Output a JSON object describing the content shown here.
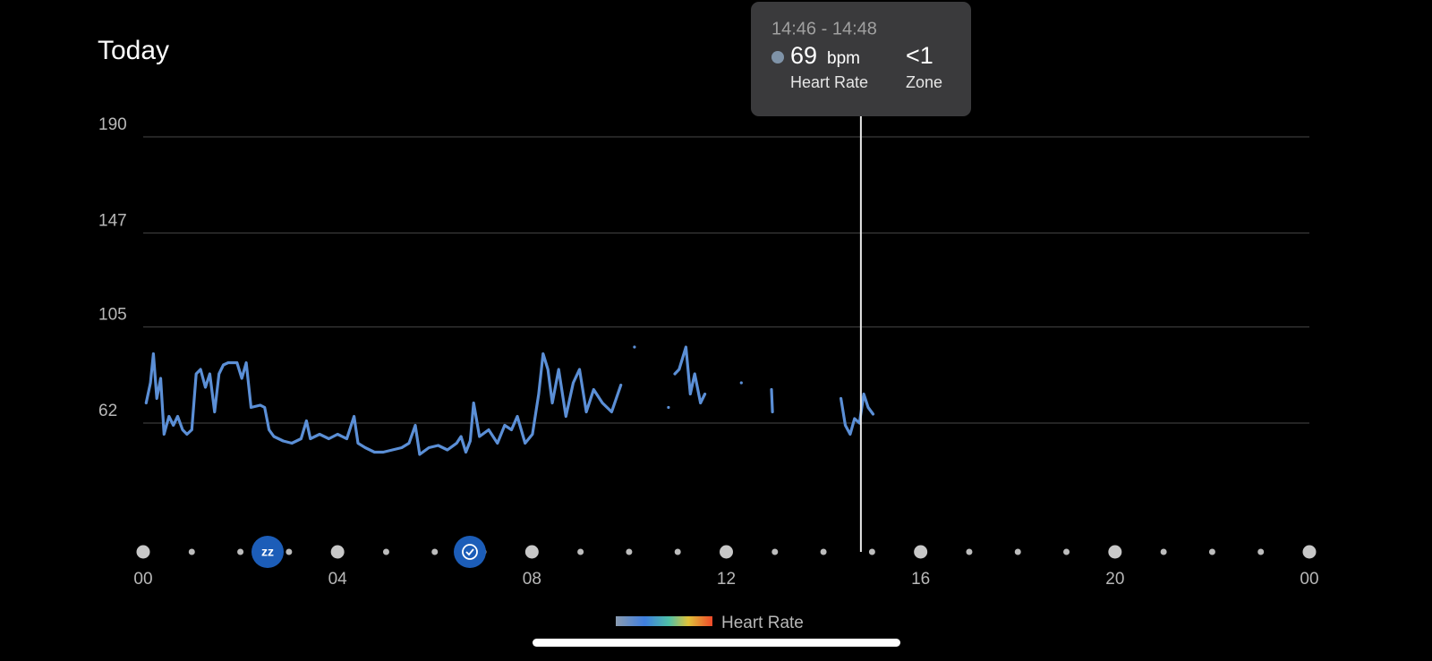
{
  "chart_data": {
    "type": "line",
    "title": "Today",
    "xlim": [
      0,
      24
    ],
    "xticks": [
      {
        "value": 0,
        "label": "00"
      },
      {
        "value": 4,
        "label": "04"
      },
      {
        "value": 8,
        "label": "08"
      },
      12,
      16,
      20,
      {
        "value": 24,
        "label": "00"
      }
    ],
    "ylim": [
      30,
      190
    ],
    "yticks": [
      62,
      105,
      147,
      190
    ],
    "grid": true,
    "cursor_x": 14.77,
    "series": [
      {
        "name": "Heart Rate",
        "color": "#5b8fd6",
        "x": [
          0.06,
          0.15,
          0.21,
          0.28,
          0.36,
          0.43,
          0.53,
          0.62,
          0.71,
          0.81,
          0.9,
          1.0,
          1.09,
          1.18,
          1.28,
          1.37,
          1.47,
          1.56,
          1.65,
          1.75,
          1.84,
          1.93,
          2.03,
          2.12,
          2.22,
          2.41,
          2.5,
          2.59,
          2.69,
          2.88,
          3.06,
          3.25,
          3.36,
          3.44,
          3.63,
          3.82,
          4.0,
          4.19,
          4.34,
          4.42,
          4.57,
          4.76,
          4.94,
          5.13,
          5.32,
          5.47,
          5.6,
          5.69,
          5.88,
          6.07,
          6.26,
          6.45,
          6.54,
          6.64,
          6.73,
          6.8,
          6.92,
          7.11,
          7.29,
          7.44,
          7.58,
          7.7,
          7.86,
          8.01,
          8.14,
          8.23,
          8.33,
          8.42,
          8.55,
          8.7,
          8.85,
          8.98,
          9.12,
          9.27,
          9.45,
          9.64,
          9.83,
          9.95,
          10.11,
          10.5,
          10.81,
          10.88,
          10.94,
          11.03,
          11.17,
          11.26,
          11.35,
          11.47,
          11.56,
          11.9,
          12.31,
          12.6,
          12.93,
          12.95,
          13.5,
          14.36,
          14.45,
          14.55,
          14.64,
          14.74,
          14.83,
          14.92,
          15.02
        ],
        "values": [
          71,
          80,
          93,
          73,
          82,
          57,
          65,
          61,
          65,
          59,
          57,
          59,
          84,
          86,
          78,
          84,
          67,
          84,
          88,
          89,
          89,
          89,
          82,
          89,
          69,
          70,
          69,
          59,
          56,
          54,
          53,
          55,
          63,
          55,
          57,
          55,
          57,
          55,
          65,
          53,
          51,
          49,
          49,
          50,
          51,
          53,
          61,
          48,
          51,
          52,
          50,
          53,
          56,
          49,
          54,
          71,
          56,
          59,
          53,
          61,
          59,
          65,
          53,
          57,
          75,
          93,
          86,
          71,
          86,
          65,
          80,
          86,
          67,
          77,
          71,
          67,
          79,
          null,
          96,
          null,
          69,
          null,
          84,
          86,
          96,
          75,
          84,
          71,
          75,
          null,
          80,
          null,
          77,
          67,
          null,
          73,
          61,
          57,
          64,
          62,
          75,
          69,
          66
        ]
      }
    ],
    "tooltip": {
      "time": "14:46 - 14:48",
      "value": 69,
      "unit": "bpm",
      "value_label": "Heart Rate",
      "zone": "<1",
      "zone_label": "Zone"
    }
  }
}
